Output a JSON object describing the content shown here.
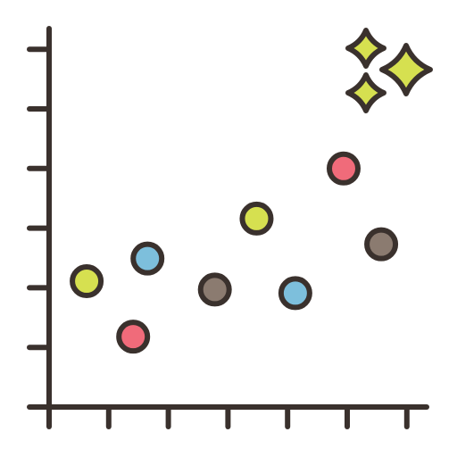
{
  "chart_data": {
    "type": "scatter",
    "title": "",
    "xlabel": "",
    "ylabel": "",
    "xlim": [
      0,
      6
    ],
    "ylim": [
      0,
      6
    ],
    "grid": false,
    "legend": "none",
    "x_ticks": [
      1,
      2,
      3,
      4,
      5,
      6
    ],
    "y_ticks": [
      1,
      2,
      3,
      4,
      5,
      6
    ],
    "points": [
      {
        "x": 0.63,
        "y": 2.11,
        "color": "#d6e050"
      },
      {
        "x": 1.41,
        "y": 1.18,
        "color": "#f06b7a"
      },
      {
        "x": 1.65,
        "y": 2.49,
        "color": "#7dbfdc"
      },
      {
        "x": 2.78,
        "y": 1.97,
        "color": "#8b7b70"
      },
      {
        "x": 3.48,
        "y": 3.16,
        "color": "#d6e050"
      },
      {
        "x": 4.13,
        "y": 1.91,
        "color": "#7dbfdc"
      },
      {
        "x": 4.94,
        "y": 4.0,
        "color": "#f06b7a"
      },
      {
        "x": 5.57,
        "y": 2.73,
        "color": "#8b7b70"
      }
    ]
  },
  "decoration": {
    "icon": "sparkles-icon",
    "color": "#d6e050"
  },
  "colors": {
    "stroke": "#3a312d",
    "background": "#ffffff"
  }
}
